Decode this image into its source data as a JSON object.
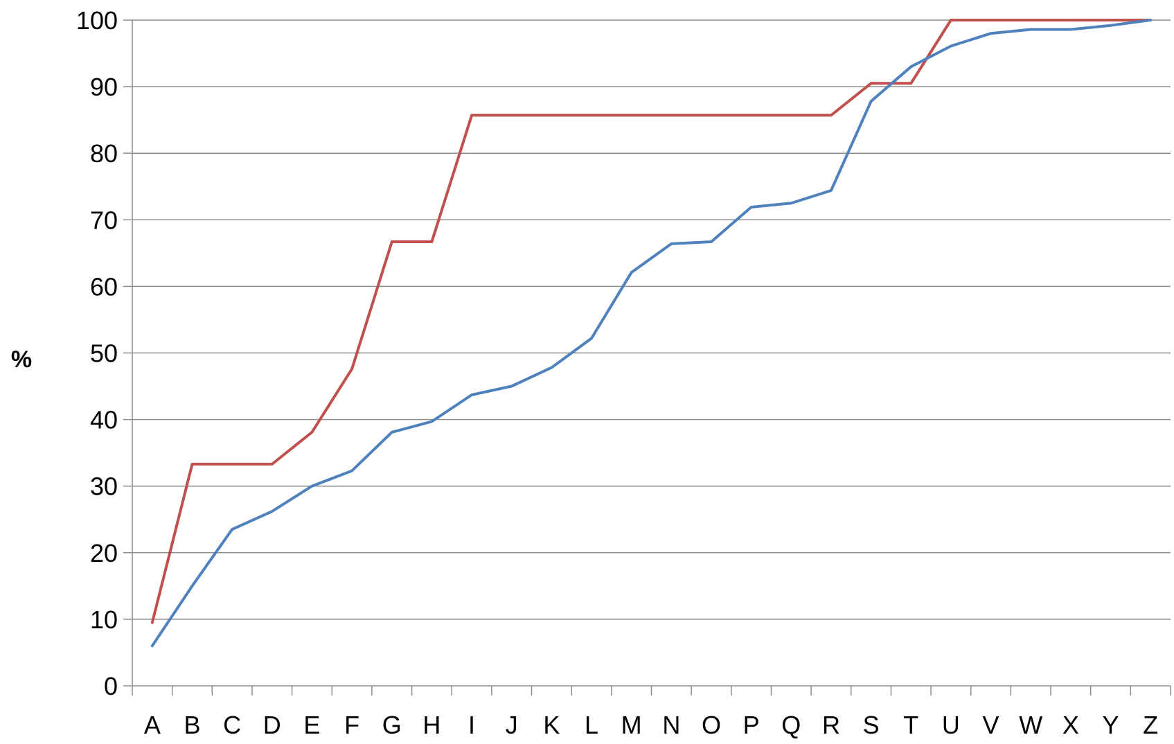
{
  "chart_data": {
    "type": "line",
    "title": "",
    "xlabel": "",
    "ylabel": "%",
    "ylim": [
      0,
      100
    ],
    "yticks": [
      0,
      10,
      20,
      30,
      40,
      50,
      60,
      70,
      80,
      90,
      100
    ],
    "categories": [
      "A",
      "B",
      "C",
      "D",
      "E",
      "F",
      "G",
      "H",
      "I",
      "J",
      "K",
      "L",
      "M",
      "N",
      "O",
      "P",
      "Q",
      "R",
      "S",
      "T",
      "U",
      "V",
      "W",
      "X",
      "Y",
      "Z"
    ],
    "grid": "horizontal",
    "legend": "none",
    "series": [
      {
        "color": "#c0504d",
        "values": [
          9.5,
          33.3,
          33.3,
          33.3,
          38.1,
          47.6,
          66.7,
          66.7,
          85.7,
          85.7,
          85.7,
          85.7,
          85.7,
          85.7,
          85.7,
          85.7,
          85.7,
          85.7,
          90.5,
          90.5,
          100,
          100,
          100,
          100,
          100,
          100
        ]
      },
      {
        "color": "#4f81bd",
        "values": [
          6.0,
          15.0,
          23.5,
          26.2,
          30.0,
          32.3,
          38.1,
          39.7,
          43.7,
          45.0,
          47.8,
          52.2,
          62.1,
          66.4,
          66.7,
          71.9,
          72.5,
          74.4,
          87.8,
          93.0,
          96.1,
          98.0,
          98.6,
          98.6,
          99.2,
          100
        ]
      }
    ]
  }
}
